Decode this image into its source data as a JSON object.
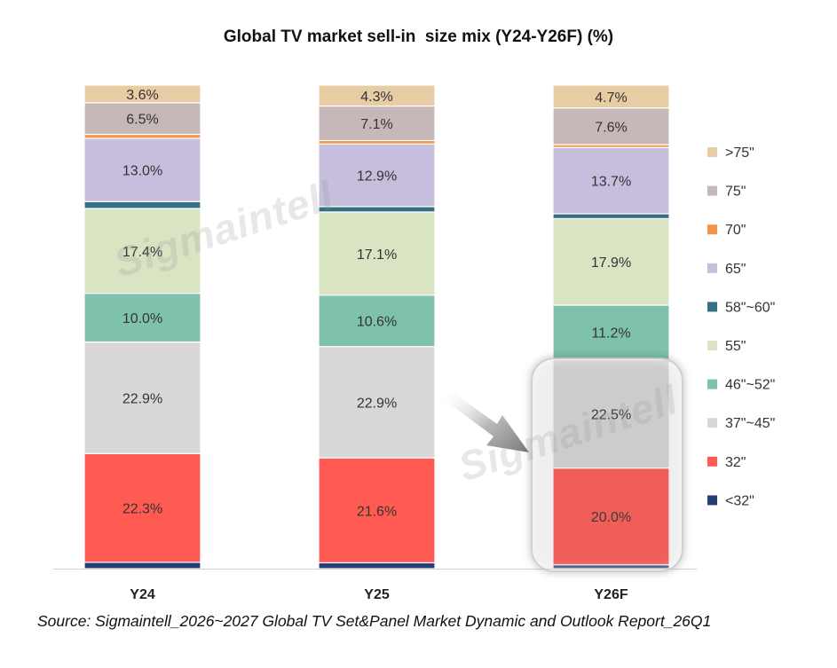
{
  "chart_data": {
    "type": "bar",
    "stacked": true,
    "title": "Global TV market sell-in  size mix (Y24-Y26F) (%)",
    "categories": [
      "Y24",
      "Y25",
      "Y26F"
    ],
    "series": [
      {
        "name": "<32\"",
        "color": "#263e78",
        "values": [
          1.3,
          1.2,
          0.8
        ],
        "labels": [
          "",
          "",
          ""
        ]
      },
      {
        "name": "32\"",
        "color": "#ff5b52",
        "values": [
          22.3,
          21.6,
          20.0
        ],
        "labels": [
          "22.3%",
          "21.6%",
          "20.0%"
        ]
      },
      {
        "name": "37\"~45\"",
        "color": "#d9d8d6",
        "values": [
          22.9,
          22.9,
          22.5
        ],
        "labels": [
          "22.9%",
          "22.9%",
          "22.5%"
        ]
      },
      {
        "name": "46\"~52\"",
        "color": "#7fc2aa",
        "values": [
          10.0,
          10.6,
          11.2
        ],
        "labels": [
          "10.0%",
          "10.6%",
          "11.2%"
        ]
      },
      {
        "name": "55\"",
        "color": "#d9e4c3",
        "values": [
          17.4,
          17.1,
          17.9
        ],
        "labels": [
          "17.4%",
          "17.1%",
          "17.9%"
        ]
      },
      {
        "name": "58\"~60\"",
        "color": "#346f84",
        "values": [
          1.4,
          1.1,
          1.0
        ],
        "labels": [
          "",
          "",
          ""
        ]
      },
      {
        "name": "65\"",
        "color": "#c6bedc",
        "values": [
          13.0,
          12.9,
          13.7
        ],
        "labels": [
          "13.0%",
          "12.9%",
          "13.7%"
        ]
      },
      {
        "name": "70\"",
        "color": "#f39447",
        "values": [
          0.8,
          0.7,
          0.6
        ],
        "labels": [
          "",
          "",
          ""
        ]
      },
      {
        "name": "75\"",
        "color": "#c6b8b9",
        "values": [
          6.5,
          7.1,
          7.6
        ],
        "labels": [
          "6.5%",
          "7.1%",
          "7.6%"
        ]
      },
      {
        "name": ">75\"",
        "color": "#e8cca4",
        "values": [
          3.6,
          4.3,
          4.7
        ],
        "labels": [
          "3.6%",
          "4.3%",
          "4.7%"
        ]
      }
    ],
    "ylim": [
      0,
      100
    ],
    "grid": false,
    "legend_position": "right"
  },
  "source": "Source: Sigmaintell_2026~2027 Global TV Set&Panel Market Dynamic and Outlook Report_26Q1",
  "watermark": "Sigmaintell"
}
